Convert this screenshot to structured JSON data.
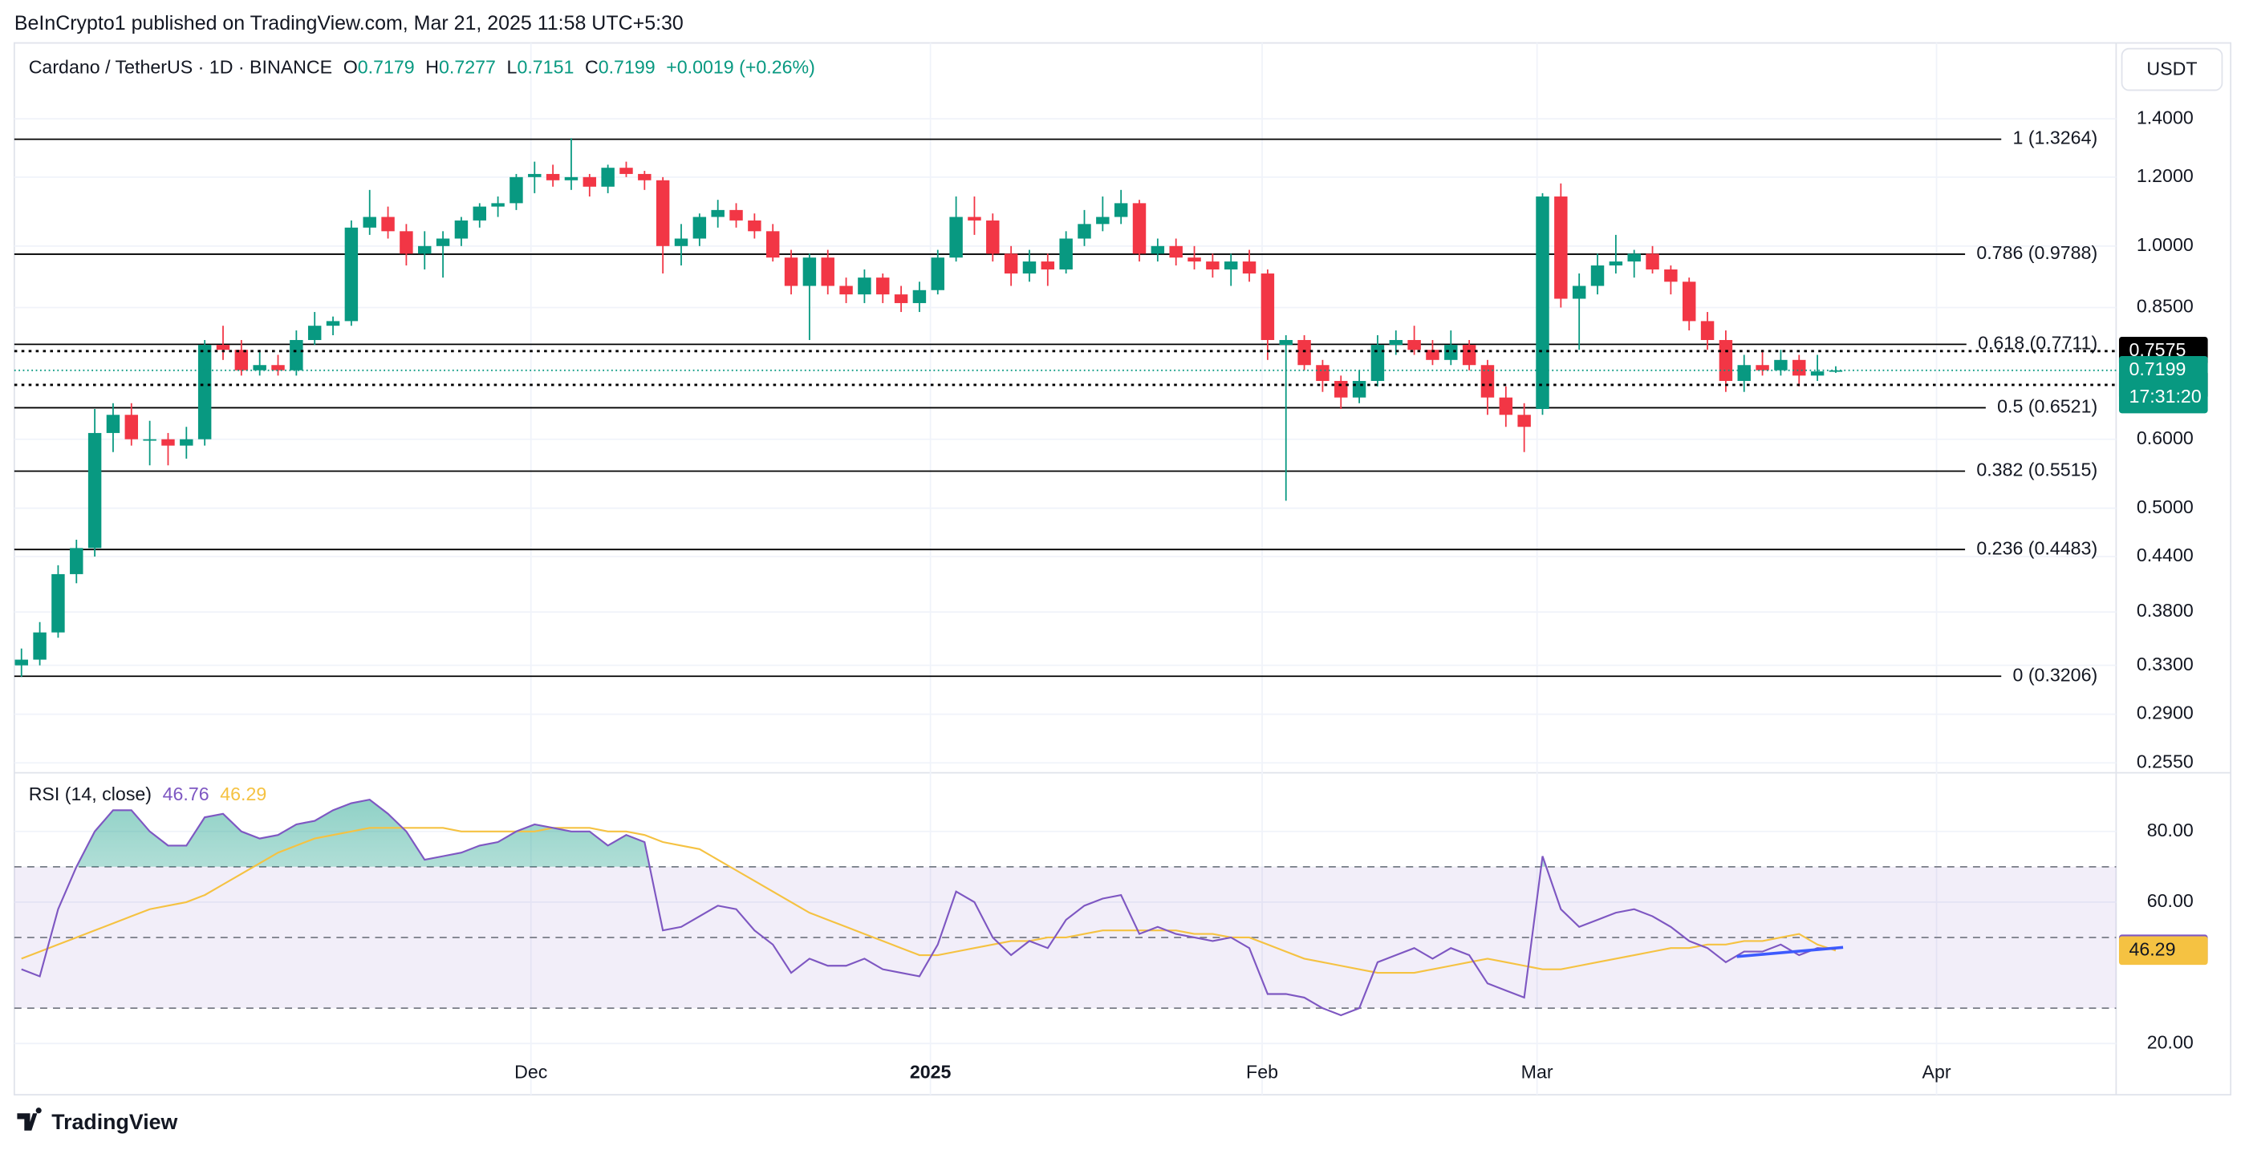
{
  "header": "BeInCrypto1 published on TradingView.com, Mar 21, 2025 11:58 UTC+5:30",
  "footer": "TradingView",
  "chart_data": [
    {
      "type": "candlestick",
      "title": "Cardano / TetherUS · 1D · BINANCE",
      "ohlc_keys": [
        "O",
        "H",
        "L",
        "C"
      ],
      "change": "+0.0019 (+0.26%)",
      "currency": "USDT",
      "log_scale": true,
      "grid": true,
      "up_color": "#089981",
      "down_color": "#f23645",
      "xlim": [
        -0.39,
        114.3
      ],
      "xticks": [
        {
          "value": 27.8,
          "label": "Dec"
        },
        {
          "value": 49.6,
          "label": "2025"
        },
        {
          "value": 67.7,
          "label": "Feb"
        },
        {
          "value": 82.7,
          "label": "Mar"
        },
        {
          "value": 104.5,
          "label": "Apr"
        }
      ],
      "ylim": [
        0.2484,
        1.711
      ],
      "yticks": [
        {
          "value": 1.4,
          "label": "1.4000"
        },
        {
          "value": 1.2,
          "label": "1.2000"
        },
        {
          "value": 1.0,
          "label": "1.0000"
        },
        {
          "value": 0.85,
          "label": "0.8500"
        },
        {
          "value": 0.6,
          "label": "0.6000"
        },
        {
          "value": 0.5,
          "label": "0.5000"
        },
        {
          "value": 0.44,
          "label": "0.4400"
        },
        {
          "value": 0.38,
          "label": "0.3800"
        },
        {
          "value": 0.33,
          "label": "0.3300"
        },
        {
          "value": 0.29,
          "label": "0.2900"
        },
        {
          "value": 0.255,
          "label": "0.2550"
        }
      ],
      "candles": [
        [
          0.33,
          0.345,
          0.32,
          0.335
        ],
        [
          0.335,
          0.37,
          0.33,
          0.36
        ],
        [
          0.36,
          0.43,
          0.355,
          0.42
        ],
        [
          0.42,
          0.46,
          0.41,
          0.45
        ],
        [
          0.45,
          0.65,
          0.44,
          0.61
        ],
        [
          0.61,
          0.66,
          0.58,
          0.64
        ],
        [
          0.64,
          0.66,
          0.59,
          0.6
        ],
        [
          0.6,
          0.63,
          0.56,
          0.6
        ],
        [
          0.6,
          0.61,
          0.56,
          0.59
        ],
        [
          0.59,
          0.62,
          0.57,
          0.6
        ],
        [
          0.6,
          0.78,
          0.59,
          0.77
        ],
        [
          0.77,
          0.81,
          0.74,
          0.76
        ],
        [
          0.76,
          0.78,
          0.71,
          0.72
        ],
        [
          0.72,
          0.76,
          0.71,
          0.73
        ],
        [
          0.73,
          0.75,
          0.71,
          0.72
        ],
        [
          0.72,
          0.8,
          0.71,
          0.78
        ],
        [
          0.78,
          0.84,
          0.77,
          0.81
        ],
        [
          0.81,
          0.83,
          0.79,
          0.82
        ],
        [
          0.82,
          1.07,
          0.81,
          1.05
        ],
        [
          1.05,
          1.16,
          1.03,
          1.08
        ],
        [
          1.08,
          1.11,
          1.02,
          1.04
        ],
        [
          1.04,
          1.06,
          0.95,
          0.98
        ],
        [
          0.98,
          1.04,
          0.94,
          1.0
        ],
        [
          1.0,
          1.04,
          0.92,
          1.02
        ],
        [
          1.02,
          1.08,
          1.0,
          1.07
        ],
        [
          1.07,
          1.12,
          1.05,
          1.11
        ],
        [
          1.11,
          1.14,
          1.08,
          1.12
        ],
        [
          1.12,
          1.21,
          1.1,
          1.2
        ],
        [
          1.2,
          1.25,
          1.15,
          1.21
        ],
        [
          1.21,
          1.24,
          1.17,
          1.19
        ],
        [
          1.19,
          1.33,
          1.16,
          1.2
        ],
        [
          1.2,
          1.21,
          1.14,
          1.17
        ],
        [
          1.17,
          1.24,
          1.15,
          1.23
        ],
        [
          1.23,
          1.25,
          1.2,
          1.21
        ],
        [
          1.21,
          1.22,
          1.16,
          1.19
        ],
        [
          1.19,
          1.2,
          0.93,
          1.0
        ],
        [
          1.0,
          1.06,
          0.95,
          1.02
        ],
        [
          1.02,
          1.09,
          1.0,
          1.08
        ],
        [
          1.08,
          1.13,
          1.05,
          1.1
        ],
        [
          1.1,
          1.12,
          1.05,
          1.07
        ],
        [
          1.07,
          1.09,
          1.02,
          1.04
        ],
        [
          1.04,
          1.06,
          0.96,
          0.97
        ],
        [
          0.97,
          0.99,
          0.88,
          0.9
        ],
        [
          0.9,
          0.98,
          0.78,
          0.97
        ],
        [
          0.97,
          0.99,
          0.88,
          0.9
        ],
        [
          0.9,
          0.92,
          0.86,
          0.88
        ],
        [
          0.88,
          0.94,
          0.86,
          0.92
        ],
        [
          0.92,
          0.93,
          0.86,
          0.88
        ],
        [
          0.88,
          0.9,
          0.84,
          0.86
        ],
        [
          0.86,
          0.91,
          0.84,
          0.89
        ],
        [
          0.89,
          0.99,
          0.88,
          0.97
        ],
        [
          0.97,
          1.14,
          0.96,
          1.08
        ],
        [
          1.08,
          1.14,
          1.03,
          1.07
        ],
        [
          1.07,
          1.09,
          0.96,
          0.98
        ],
        [
          0.98,
          1.0,
          0.9,
          0.93
        ],
        [
          0.93,
          0.99,
          0.91,
          0.96
        ],
        [
          0.96,
          0.98,
          0.9,
          0.94
        ],
        [
          0.94,
          1.04,
          0.93,
          1.02
        ],
        [
          1.02,
          1.1,
          1.0,
          1.06
        ],
        [
          1.06,
          1.14,
          1.04,
          1.08
        ],
        [
          1.08,
          1.16,
          1.06,
          1.12
        ],
        [
          1.12,
          1.13,
          0.96,
          0.98
        ],
        [
          0.98,
          1.02,
          0.96,
          1.0
        ],
        [
          1.0,
          1.02,
          0.95,
          0.97
        ],
        [
          0.97,
          1.0,
          0.94,
          0.96
        ],
        [
          0.96,
          0.98,
          0.92,
          0.94
        ],
        [
          0.94,
          0.98,
          0.9,
          0.96
        ],
        [
          0.96,
          0.99,
          0.91,
          0.93
        ],
        [
          0.93,
          0.94,
          0.74,
          0.78
        ],
        [
          0.77,
          0.79,
          0.51,
          0.78
        ],
        [
          0.78,
          0.79,
          0.72,
          0.73
        ],
        [
          0.73,
          0.74,
          0.68,
          0.7
        ],
        [
          0.7,
          0.71,
          0.65,
          0.67
        ],
        [
          0.67,
          0.72,
          0.66,
          0.7
        ],
        [
          0.7,
          0.79,
          0.69,
          0.77
        ],
        [
          0.77,
          0.8,
          0.75,
          0.78
        ],
        [
          0.78,
          0.81,
          0.75,
          0.76
        ],
        [
          0.76,
          0.78,
          0.73,
          0.74
        ],
        [
          0.74,
          0.8,
          0.73,
          0.77
        ],
        [
          0.77,
          0.78,
          0.72,
          0.73
        ],
        [
          0.73,
          0.74,
          0.64,
          0.67
        ],
        [
          0.67,
          0.69,
          0.62,
          0.64
        ],
        [
          0.64,
          0.66,
          0.58,
          0.62
        ],
        [
          0.65,
          1.15,
          0.64,
          1.14
        ],
        [
          1.14,
          1.18,
          0.85,
          0.87
        ],
        [
          0.87,
          0.93,
          0.76,
          0.9
        ],
        [
          0.9,
          0.98,
          0.88,
          0.95
        ],
        [
          0.95,
          1.03,
          0.93,
          0.96
        ],
        [
          0.96,
          0.99,
          0.92,
          0.98
        ],
        [
          0.98,
          1.0,
          0.93,
          0.94
        ],
        [
          0.94,
          0.95,
          0.88,
          0.91
        ],
        [
          0.91,
          0.92,
          0.8,
          0.82
        ],
        [
          0.82,
          0.84,
          0.76,
          0.78
        ],
        [
          0.78,
          0.8,
          0.68,
          0.7
        ],
        [
          0.7,
          0.75,
          0.68,
          0.73
        ],
        [
          0.73,
          0.76,
          0.71,
          0.72
        ],
        [
          0.72,
          0.76,
          0.71,
          0.74
        ],
        [
          0.74,
          0.75,
          0.69,
          0.71
        ],
        [
          0.71,
          0.75,
          0.7,
          0.7179
        ],
        [
          0.7179,
          0.7277,
          0.7151,
          0.7199
        ]
      ],
      "fib_levels": [
        {
          "value": 1.3264,
          "label": "1 (1.3264)"
        },
        {
          "value": 0.9788,
          "label": "0.786 (0.9788)"
        },
        {
          "value": 0.7711,
          "label": "0.618 (0.7711)"
        },
        {
          "value": 0.6521,
          "label": "0.5 (0.6521)"
        },
        {
          "value": 0.5515,
          "label": "0.382 (0.5515)"
        },
        {
          "value": 0.4483,
          "label": "0.236 (0.4483)"
        },
        {
          "value": 0.3206,
          "label": "0 (0.3206)"
        }
      ],
      "fib_color": "#000000",
      "price_lines": [
        0.7575,
        0.6928
      ],
      "price_line_color": "#000000",
      "last_price_color": "#089981",
      "countdown": "17:31:20"
    },
    {
      "type": "rsi",
      "title": "RSI (14, close)",
      "ylim": [
        5.5,
        96.6
      ],
      "yticks": [
        {
          "value": 80,
          "label": "80.00"
        },
        {
          "value": 60,
          "label": "60.00"
        },
        {
          "value": 20,
          "label": "20.00"
        }
      ],
      "bands": [
        70,
        50,
        30
      ],
      "band_color": "#7e57c2",
      "overbought_color": "#089981",
      "series": [
        {
          "color": "#7e57c2",
          "values": [
            41,
            39,
            58,
            70,
            80,
            86,
            86,
            80,
            76,
            76,
            84,
            85,
            80,
            78,
            79,
            82,
            83,
            86,
            88,
            89,
            85,
            80,
            72,
            73,
            74,
            76,
            77,
            80,
            82,
            81,
            80,
            80,
            76,
            79,
            77,
            52,
            53,
            56,
            59,
            58,
            52,
            48,
            40,
            44,
            42,
            42,
            44,
            41,
            40,
            39,
            48,
            63,
            60,
            50,
            45,
            49,
            47,
            55,
            59,
            61,
            62,
            51,
            53,
            51,
            50,
            49,
            50,
            47,
            34,
            34,
            33,
            30,
            28,
            30,
            43,
            45,
            47,
            44,
            47,
            45,
            37,
            35,
            33,
            73,
            58,
            53,
            55,
            57,
            58,
            56,
            53,
            49,
            47,
            43,
            46,
            46,
            48,
            45,
            47,
            46.76
          ]
        },
        {
          "color": "#f5c242",
          "values": [
            44,
            46,
            48,
            50,
            52,
            54,
            56,
            58,
            59,
            60,
            62,
            65,
            68,
            71,
            74,
            76,
            78,
            79,
            80,
            81,
            81,
            81,
            81,
            81,
            80,
            80,
            80,
            80,
            80,
            81,
            81,
            81,
            80,
            80,
            79,
            77,
            76,
            75,
            72,
            69,
            66,
            63,
            60,
            57,
            55,
            53,
            51,
            49,
            47,
            45,
            45,
            46,
            47,
            48,
            49,
            49,
            50,
            50,
            51,
            52,
            52,
            52,
            52,
            52,
            51,
            51,
            50,
            50,
            48,
            46,
            44,
            43,
            42,
            41,
            40,
            40,
            40,
            41,
            42,
            43,
            44,
            43,
            42,
            41,
            41,
            42,
            43,
            44,
            45,
            46,
            47,
            47,
            48,
            48,
            49,
            49,
            50,
            51,
            48,
            46.29
          ]
        }
      ],
      "divergence_line": {
        "color": "#3d5afe",
        "x": [
          93.6,
          99.4
        ],
        "y": [
          44.6,
          47.2
        ]
      }
    }
  ]
}
